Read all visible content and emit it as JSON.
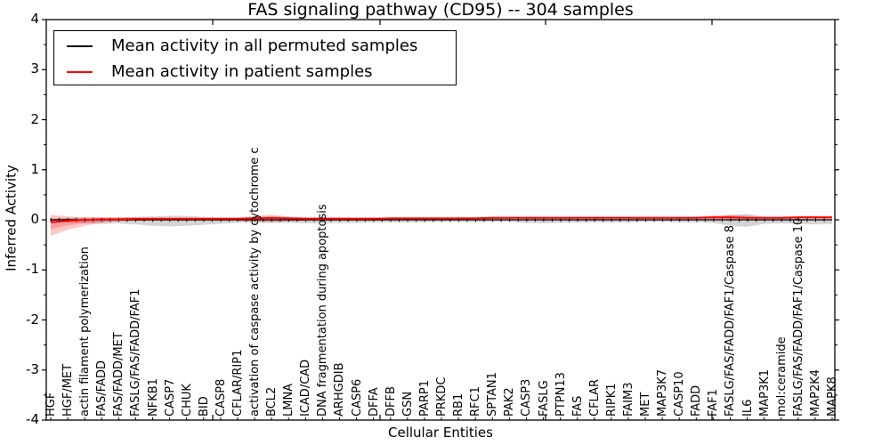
{
  "title": "FAS signaling pathway (CD95) -- 304 samples",
  "axes": {
    "ylabel": "Inferred Activity",
    "xlabel": "Cellular Entities",
    "ytick_labels": [
      "4",
      "3",
      "2",
      "1",
      "0",
      "-1",
      "-2",
      "-3",
      "-4"
    ],
    "ylim": [
      -4,
      4
    ]
  },
  "legend": {
    "items": [
      {
        "label": "Mean activity in all permuted samples",
        "color": "#000000"
      },
      {
        "label": "Mean activity in patient samples",
        "color": "#ff0000"
      }
    ]
  },
  "chart_data": {
    "type": "line",
    "title": "FAS signaling pathway (CD95) -- 304 samples",
    "xlabel": "Cellular Entities",
    "ylabel": "Inferred Activity",
    "ylim": [
      -4,
      4
    ],
    "yticks": [
      4,
      3,
      2,
      1,
      0,
      -1,
      -2,
      -3,
      -4
    ],
    "legend_position": "upper left",
    "grid": false,
    "categories": [
      "HGF",
      "HGF/MET",
      "actin filament polymerization",
      "FAS/FADD",
      "FAS/FADD/MET",
      "FASLG/FAS/FADD/FAF1",
      "NFKB1",
      "CASP7",
      "CHUK",
      "BID",
      "CASP8",
      "CFLAR/RIP1",
      "activation of caspase activity by cytochrome c",
      "BCL2",
      "LMNA",
      "ICAD/CAD",
      "DNA fragmentation during apoptosis",
      "ARHGDIB",
      "CASP6",
      "DFFA",
      "DFFB",
      "GSN",
      "PARP1",
      "PRKDC",
      "RB1",
      "RFC1",
      "SPTAN1",
      "PAK2",
      "CASP3",
      "FASLG",
      "PTPN13",
      "FAS",
      "CFLAR",
      "RIPK1",
      "FAIM3",
      "MET",
      "MAP3K7",
      "CASP10",
      "FADD",
      "FAF1",
      "FASLG/FAS/FADD/FAF1/Caspase 8",
      "IL6",
      "MAP3K1",
      "mol:ceramide",
      "FASLG/FAS/FADD/FAF1/Caspase 10",
      "MAP2K4",
      "MAPK8"
    ],
    "series": [
      {
        "name": "Mean activity in all permuted samples",
        "color": "#000000",
        "band_color": "rgba(0,0,0,0.17)",
        "values": [
          0,
          0,
          0,
          0,
          0,
          0,
          0,
          0,
          0,
          0,
          0,
          0,
          0,
          0,
          0,
          0,
          0,
          0,
          0,
          0,
          0,
          0,
          0,
          0,
          0,
          0,
          0,
          0,
          0,
          0,
          0,
          0,
          0,
          0,
          0,
          0,
          0,
          0,
          0,
          0,
          0,
          0,
          0,
          0,
          0,
          0,
          0
        ],
        "band_upper": [
          0.03,
          0.04,
          0.05,
          0.05,
          0.05,
          0.06,
          0.07,
          0.08,
          0.08,
          0.06,
          0.05,
          0.05,
          0.04,
          0.04,
          0.05,
          0.06,
          0.06,
          0.06,
          0.05,
          0.05,
          0.04,
          0.04,
          0.04,
          0.04,
          0.04,
          0.04,
          0.04,
          0.04,
          0.05,
          0.05,
          0.04,
          0.04,
          0.04,
          0.04,
          0.04,
          0.04,
          0.04,
          0.04,
          0.04,
          0.05,
          0.1,
          0.12,
          0.06,
          0.05,
          0.06,
          0.07,
          0.06
        ],
        "band_lower": [
          -0.04,
          -0.05,
          -0.07,
          -0.08,
          -0.07,
          -0.09,
          -0.12,
          -0.13,
          -0.12,
          -0.1,
          -0.08,
          -0.06,
          -0.05,
          -0.05,
          -0.06,
          -0.07,
          -0.07,
          -0.06,
          -0.06,
          -0.05,
          -0.05,
          -0.05,
          -0.05,
          -0.04,
          -0.04,
          -0.05,
          -0.04,
          -0.04,
          -0.06,
          -0.07,
          -0.06,
          -0.05,
          -0.05,
          -0.05,
          -0.05,
          -0.04,
          -0.04,
          -0.05,
          -0.05,
          -0.06,
          -0.12,
          -0.14,
          -0.08,
          -0.07,
          -0.08,
          -0.09,
          -0.08
        ]
      },
      {
        "name": "Mean activity in patient samples",
        "color": "#ff0000",
        "band_color": "rgba(255,0,0,0.22)",
        "values": [
          -0.05,
          -0.02,
          0,
          0.01,
          0.01,
          0.02,
          0.02,
          0.02,
          0.02,
          0.02,
          0.02,
          0.02,
          0.03,
          0.04,
          0.03,
          0.02,
          0.02,
          0.02,
          0.02,
          0.02,
          0.03,
          0.03,
          0.03,
          0.03,
          0.03,
          0.03,
          0.04,
          0.04,
          0.04,
          0.04,
          0.04,
          0.04,
          0.04,
          0.04,
          0.04,
          0.04,
          0.04,
          0.04,
          0.04,
          0.05,
          0.05,
          0.04,
          0.04,
          0.04,
          0.05,
          0.05,
          0.05
        ],
        "band_upper": [
          0.1,
          0.07,
          0.05,
          0.05,
          0.05,
          0.05,
          0.05,
          0.05,
          0.05,
          0.05,
          0.05,
          0.05,
          0.08,
          0.1,
          0.07,
          0.05,
          0.05,
          0.05,
          0.05,
          0.05,
          0.05,
          0.05,
          0.05,
          0.05,
          0.05,
          0.06,
          0.07,
          0.07,
          0.07,
          0.07,
          0.07,
          0.07,
          0.07,
          0.07,
          0.07,
          0.07,
          0.07,
          0.07,
          0.07,
          0.09,
          0.1,
          0.08,
          0.07,
          0.07,
          0.08,
          0.08,
          0.08
        ],
        "band_lower": [
          -0.32,
          -0.2,
          -0.12,
          -0.06,
          -0.03,
          -0.02,
          -0.02,
          -0.02,
          -0.02,
          -0.02,
          -0.02,
          -0.02,
          -0.04,
          -0.06,
          -0.03,
          -0.02,
          -0.02,
          -0.02,
          -0.02,
          -0.02,
          -0.01,
          -0.01,
          -0.01,
          -0.01,
          -0.01,
          0.0,
          0.01,
          0.01,
          0.01,
          0.01,
          0.01,
          0.01,
          0.01,
          0.01,
          0.01,
          0.01,
          0.01,
          0.01,
          0.01,
          0.01,
          0.0,
          0.01,
          0.01,
          0.01,
          0.02,
          0.02,
          0.02
        ]
      }
    ]
  }
}
